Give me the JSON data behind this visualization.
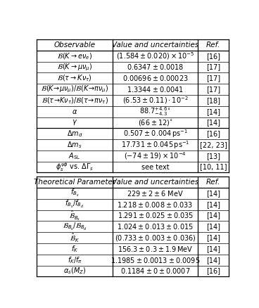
{
  "table1_header": [
    "Observable",
    "Value and uncertainties",
    "Ref."
  ],
  "table1_rows_s1": [
    [
      "$\\mathcal{B}(K \\rightarrow e\\nu_e)$",
      "$(1.584 \\pm 0.020) \\times 10^{-5}$",
      "[16]"
    ],
    [
      "$\\mathcal{B}(K \\rightarrow \\mu\\nu_{\\mu})$",
      "$0.6347 \\pm 0.0018$",
      "[17]"
    ],
    [
      "$\\mathcal{B}(\\tau \\rightarrow K\\nu_{\\tau})$",
      "$0.00696 \\pm 0.00023$",
      "[17]"
    ],
    [
      "$\\mathcal{B}(K\\!\\rightarrow\\!\\mu\\nu_{\\mu})/\\mathcal{B}(K\\!\\rightarrow\\!\\pi\\nu_{\\mu})$",
      "$1.3344 \\pm 0.0041$",
      "[17]"
    ],
    [
      "$\\mathcal{B}(\\tau\\!\\rightarrow\\! K\\nu_{\\tau})/\\mathcal{B}(\\tau\\!\\rightarrow\\!\\pi\\nu_{\\tau})$",
      "$(6.53 \\pm 0.11)\\cdot 10^{-2}$",
      "[18]"
    ],
    [
      "$\\alpha$",
      "$88.7^{+4.6\\circ}_{-4.3}$",
      "[14]"
    ],
    [
      "$\\gamma$",
      "$(66 \\pm 12)^{\\circ}$",
      "[14]"
    ]
  ],
  "table1_rows_s2": [
    [
      "$\\Delta m_d$",
      "$0.507 \\pm 0.004\\,\\mathrm{ps}^{-1}$",
      "[16]"
    ],
    [
      "$\\Delta m_s$",
      "$17.731 \\pm 0.045\\,\\mathrm{ps}^{-1}$",
      "[22, 23]"
    ],
    [
      "$A_{\\mathrm{SL}}$",
      "$(-74 \\pm 19) \\times 10^{-4}$",
      "[13]"
    ],
    [
      "$\\phi_s^{\\psi\\phi}$ vs. $\\Delta\\Gamma_s$",
      "see text",
      "[10, 11]"
    ]
  ],
  "table2_header": [
    "Theoretical Parameter",
    "Value and uncertainties",
    "Ref."
  ],
  "table2_rows": [
    [
      "$f_{B_s}$",
      "$229 \\pm 2 \\pm 6$ MeV",
      "[14]"
    ],
    [
      "$f_{B_s}/f_{B_d}$",
      "$1.218 \\pm 0.008 \\pm 0.033$",
      "[14]"
    ],
    [
      "$\\hat{\\mathcal{B}}_{B_s}$",
      "$1.291 \\pm 0.025 \\pm 0.035$",
      "[14]"
    ],
    [
      "$\\mathcal{B}_{B_s}/\\mathcal{B}_{B_d}$",
      "$1.024 \\pm 0.013 \\pm 0.015$",
      "[14]"
    ],
    [
      "$\\hat{\\mathcal{B}}_K$",
      "$(0.733 \\pm 0.003 \\pm 0.036)$",
      "[14]"
    ],
    [
      "$f_K$",
      "$156.3 \\pm 0.3 \\pm 1.9\\,\\mathrm{MeV}$",
      "[14]"
    ],
    [
      "$f_K/f_{\\pi}$",
      "$1.1985 \\pm 0.0013 \\pm 0.0095$",
      "[14]"
    ],
    [
      "$\\alpha_s(M_Z)$",
      "$0.1184 \\pm 0 \\pm 0.0007$",
      "[16]"
    ]
  ],
  "bg_color": "#ffffff"
}
